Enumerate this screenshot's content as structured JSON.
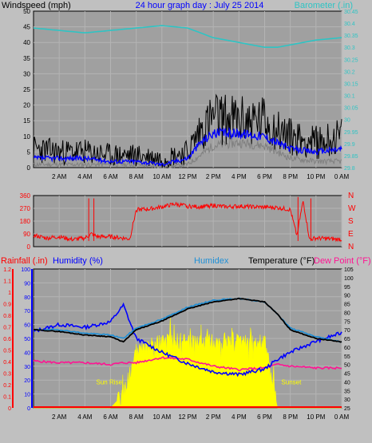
{
  "colors": {
    "background": "#c0c0c0",
    "plot_bg": "#a0a0a0",
    "grid": "#b4b4b4",
    "title_blue": "#0000ff",
    "barometer": "#2ec4c4",
    "wind_gust": "#000000",
    "wind_avg": "#0000ff",
    "wind_gray": "#808080",
    "direction": "#ff0000",
    "rain": "#ff0000",
    "humidity": "#0000ff",
    "humidex": "#1e8fd6",
    "temperature": "#000000",
    "dewpoint": "#ff1493",
    "solar": "#ffff00"
  },
  "time_ticks": [
    "2 AM",
    "4 AM",
    "6 AM",
    "8 AM",
    "10 AM",
    "12 PM",
    "2 PM",
    "4 PM",
    "6 PM",
    "8 PM",
    "10 PM",
    "0 AM"
  ],
  "chart_data": [
    {
      "type": "line",
      "title": "24 hour graph day : July 25 2014",
      "ylabel": "Windspeed (mph)",
      "y2label": "Barometer (.in)",
      "ylim": [
        0,
        50
      ],
      "y_ticks": [
        "0",
        "5",
        "10",
        "15",
        "20",
        "25",
        "30",
        "35",
        "40",
        "45",
        "50"
      ],
      "y2lim": [
        29.8,
        30.45
      ],
      "y2_ticks": [
        "29.8",
        "29.85",
        "29.9",
        "29.95",
        "30",
        "30.05",
        "30.1",
        "30.15",
        "30.2",
        "30.25",
        "30.3",
        "30.35",
        "30.4",
        "30.45"
      ],
      "x_hours": [
        0,
        2,
        4,
        6,
        8,
        10,
        12,
        13,
        14,
        16,
        18,
        19,
        20,
        22,
        24
      ],
      "series": [
        {
          "name": "Barometer",
          "values": [
            30.38,
            30.37,
            30.36,
            30.37,
            30.38,
            30.39,
            30.38,
            30.36,
            30.34,
            30.32,
            30.3,
            30.3,
            30.31,
            30.33,
            30.34
          ]
        },
        {
          "name": "Gust",
          "values": [
            6,
            5,
            5,
            4,
            4,
            3,
            5,
            12,
            16,
            15,
            15,
            12,
            10,
            8,
            10
          ]
        },
        {
          "name": "Average",
          "values": [
            3,
            3,
            3,
            2,
            2,
            1,
            3,
            8,
            11,
            11,
            10,
            8,
            6,
            5,
            6
          ]
        },
        {
          "name": "Low",
          "values": [
            1,
            1,
            1,
            1,
            1,
            0,
            1,
            4,
            7,
            8,
            7,
            5,
            3,
            2,
            2
          ]
        }
      ]
    },
    {
      "type": "scatter",
      "ylabel": "Direction",
      "ylim": [
        0,
        360
      ],
      "y_ticks": [
        "0",
        "90",
        "180",
        "270",
        "360"
      ],
      "y2_ticks": [
        "N",
        "E",
        "S",
        "W",
        "N"
      ],
      "x_hours": [
        0,
        1,
        2,
        3,
        4,
        4.5,
        5,
        6,
        7,
        7.5,
        8,
        9,
        10,
        11,
        12,
        13,
        14,
        15,
        16,
        17,
        18,
        19,
        20,
        20.5,
        21,
        21.5,
        22,
        23,
        24
      ],
      "values": [
        80,
        60,
        70,
        50,
        60,
        90,
        70,
        70,
        60,
        55,
        260,
        265,
        280,
        300,
        285,
        280,
        290,
        280,
        285,
        280,
        278,
        275,
        260,
        80,
        320,
        50,
        60,
        55,
        50
      ]
    },
    {
      "type": "line",
      "ylabel_left_outer": "Rainfall (.in)",
      "ylabel_left_inner": "Humidity (%)",
      "label_humidex": "Humidex",
      "label_temperature": "Temperature (°F)",
      "label_dewpoint": "Dew Point (°F)",
      "annotation_sunrise": "Sun Rise",
      "annotation_sunset": "Sunset",
      "y_ticks_humidity": [
        "0",
        "10",
        "20",
        "30",
        "40",
        "50",
        "60",
        "70",
        "80",
        "90",
        "100"
      ],
      "y_ticks_rain": [
        "0",
        "0.1",
        "0.2",
        "0.3",
        "0.4",
        "0.5",
        "0.6",
        "0.7",
        "0.8",
        "0.9",
        "1",
        "1.1",
        "1.2"
      ],
      "y2lim": [
        25,
        105
      ],
      "y2_ticks": [
        "25",
        "30",
        "35",
        "40",
        "45",
        "50",
        "55",
        "60",
        "65",
        "70",
        "75",
        "80",
        "85",
        "90",
        "95",
        "100",
        "105"
      ],
      "x_hours": [
        0,
        2,
        4,
        6,
        7,
        8,
        10,
        12,
        14,
        16,
        18,
        19,
        20,
        22,
        24
      ],
      "series": [
        {
          "name": "Temperature",
          "values": [
            70,
            69,
            67,
            66,
            63,
            70,
            75,
            82,
            86,
            88,
            86,
            79,
            70,
            65,
            63
          ]
        },
        {
          "name": "Humidex",
          "values": [
            70,
            70,
            68,
            67,
            65,
            71,
            76,
            83,
            87,
            88,
            86,
            79,
            71,
            66,
            63
          ]
        },
        {
          "name": "Humidity",
          "values": [
            55,
            60,
            58,
            62,
            74,
            50,
            40,
            32,
            26,
            24,
            28,
            35,
            40,
            48,
            54
          ]
        },
        {
          "name": "Dew Point",
          "values": [
            52,
            51,
            51,
            50,
            51,
            51,
            54,
            53,
            49,
            47,
            48,
            50,
            49,
            48,
            48
          ]
        },
        {
          "name": "Solar",
          "values": [
            0,
            0,
            0,
            0,
            10,
            40,
            48,
            48,
            48,
            49,
            48,
            0,
            0,
            0,
            0
          ]
        },
        {
          "name": "Rainfall",
          "values": [
            0,
            0,
            0,
            0,
            0,
            0,
            0,
            0,
            0,
            0,
            0,
            0,
            0,
            0,
            0
          ]
        }
      ]
    }
  ]
}
